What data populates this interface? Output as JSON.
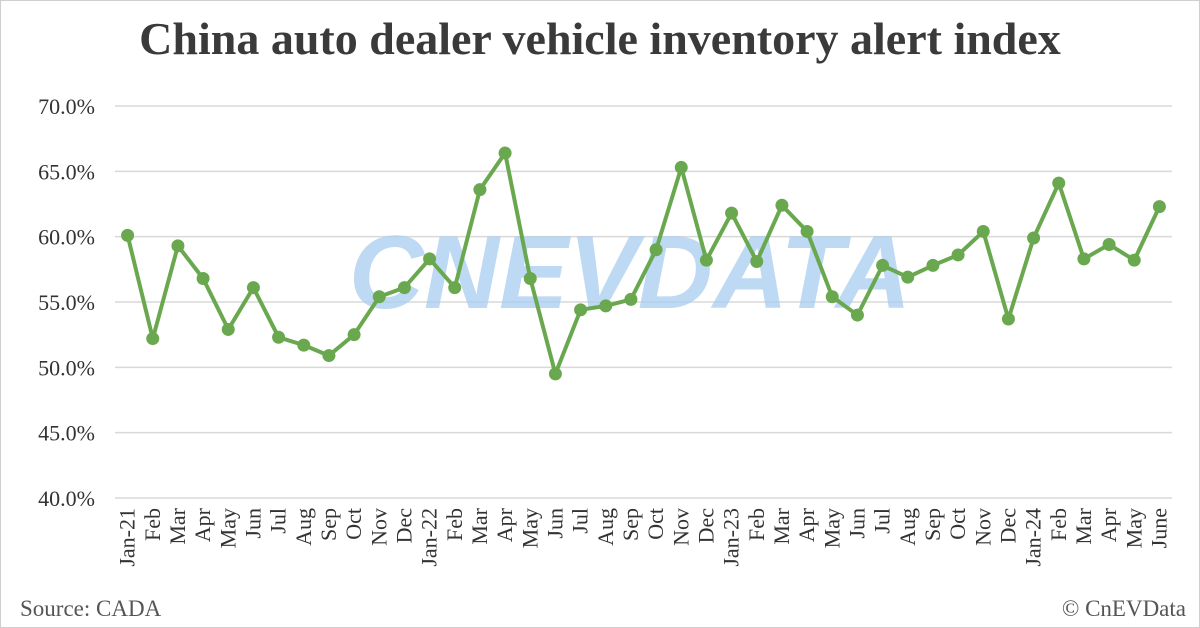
{
  "chart_data": {
    "type": "line",
    "title": "China auto dealer vehicle inventory alert index",
    "categories": [
      "Jan-21",
      "Feb",
      "Mar",
      "Apr",
      "May",
      "Jun",
      "Jul",
      "Aug",
      "Sep",
      "Oct",
      "Nov",
      "Dec",
      "Jan-22",
      "Feb",
      "Mar",
      "Apr",
      "May",
      "Jun",
      "Jul",
      "Aug",
      "Sep",
      "Oct",
      "Nov",
      "Dec",
      "Jan-23",
      "Feb",
      "Mar",
      "Apr",
      "May",
      "Jun",
      "Jul",
      "Aug",
      "Sep",
      "Oct",
      "Nov",
      "Dec",
      "Jan-24",
      "Feb",
      "Mar",
      "Apr",
      "May",
      "June"
    ],
    "series": [
      {
        "values": [
          60.1,
          52.2,
          59.3,
          56.8,
          52.9,
          56.1,
          52.3,
          51.7,
          50.9,
          52.5,
          55.4,
          56.1,
          58.3,
          56.1,
          63.6,
          66.4,
          56.8,
          49.5,
          54.4,
          54.7,
          55.2,
          59.0,
          65.3,
          58.2,
          61.8,
          58.1,
          62.4,
          60.4,
          55.4,
          54.0,
          57.8,
          56.9,
          57.8,
          58.6,
          60.4,
          53.7,
          59.9,
          64.1,
          58.3,
          59.4,
          58.2,
          62.3
        ]
      }
    ],
    "y_ticks": [
      "70.0%",
      "65.0%",
      "60.0%",
      "55.0%",
      "50.0%",
      "45.0%",
      "40.0%"
    ],
    "ylim": [
      40,
      70
    ],
    "y_unit": "%",
    "grid": true,
    "line_color": "#6aa84f",
    "grid_color": "#d9d9d9"
  },
  "footer": {
    "source": "Source: CADA",
    "copyright": "© CnEVData"
  },
  "watermark": "CNEVDATA"
}
